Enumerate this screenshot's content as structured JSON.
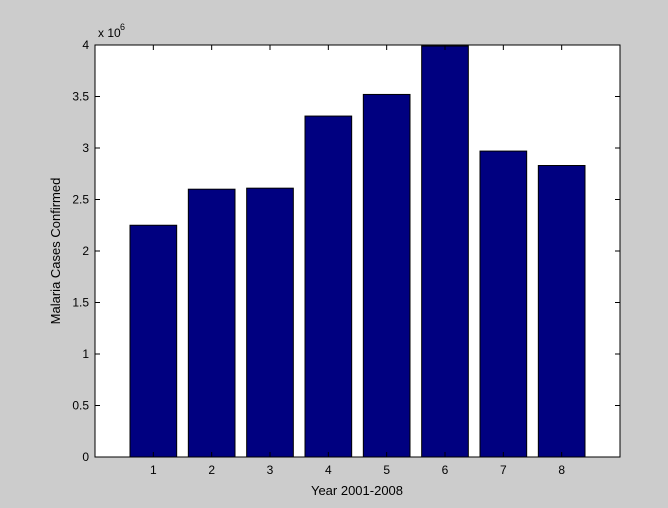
{
  "chart_data": {
    "type": "bar",
    "categories": [
      "1",
      "2",
      "3",
      "4",
      "5",
      "6",
      "7",
      "8"
    ],
    "values": [
      2250000,
      2600000,
      2610000,
      3310000,
      3520000,
      3990000,
      2970000,
      2830000
    ],
    "title": "",
    "xlabel": "Year 2001-2008",
    "ylabel": "Malaria Cases Confirmed",
    "ylim": [
      0,
      4000000
    ],
    "xlim": [
      0,
      9
    ],
    "yticks": [
      0,
      0.5,
      1,
      1.5,
      2,
      2.5,
      3,
      3.5,
      4
    ],
    "ytick_labels": [
      "0",
      "0.5",
      "1",
      "1.5",
      "2",
      "2.5",
      "3",
      "3.5",
      "4"
    ],
    "y_exponent_base": "x 10",
    "y_exponent_power": "6",
    "grid": false,
    "legend": "none",
    "colors": {
      "bar_fill": "#000080",
      "bar_edge": "#000000",
      "axes_bg": "#ffffff",
      "figure_bg": "#cccccc"
    }
  }
}
